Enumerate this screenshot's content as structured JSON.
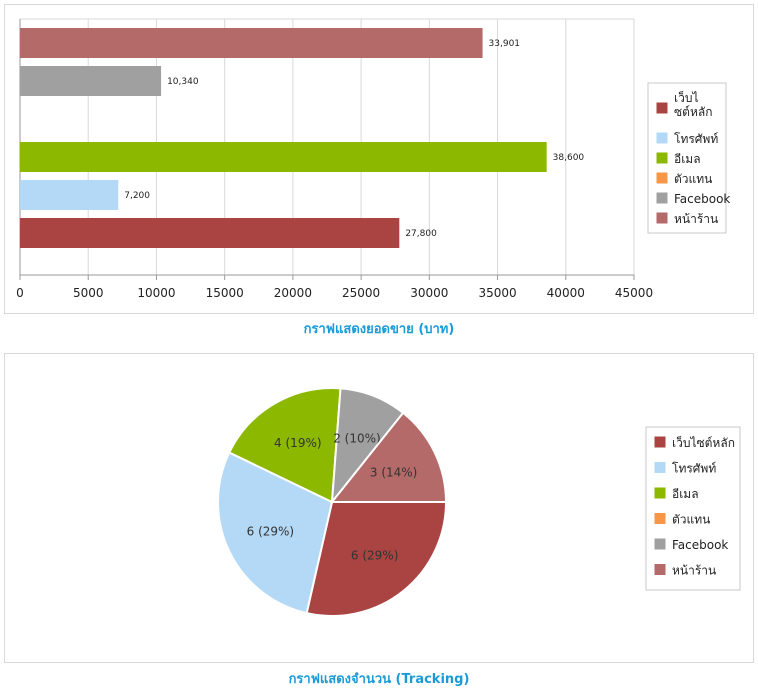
{
  "colors": {
    "legend_swatches": [
      "#a94442",
      "#b3d9f7",
      "#8cb800",
      "#f79646",
      "#a0a0a0",
      "#b56a6a"
    ]
  },
  "chart_data": [
    {
      "type": "bar",
      "orientation": "horizontal",
      "title": "กราฟแสดงยอดขาย (บาท)",
      "xlim": [
        0,
        45000
      ],
      "xticks": [
        0,
        5000,
        10000,
        15000,
        20000,
        25000,
        30000,
        35000,
        40000,
        45000
      ],
      "grid": true,
      "legend_position": "right",
      "legend": [
        "เว็บไซต์หลัก",
        "โทรศัพท์",
        "อีเมล",
        "ตัวแทน",
        "Facebook",
        "หน้าร้าน"
      ],
      "bars": [
        {
          "label": "33,901",
          "value": 33901,
          "color": "#b56a6a"
        },
        {
          "label": "10,340",
          "value": 10340,
          "color": "#a0a0a0"
        },
        {
          "label": "",
          "value": 0,
          "color": "#f79646"
        },
        {
          "label": "38,600",
          "value": 38600,
          "color": "#8cb800"
        },
        {
          "label": "7,200",
          "value": 7200,
          "color": "#b3d9f7"
        },
        {
          "label": "27,800",
          "value": 27800,
          "color": "#a94442"
        }
      ]
    },
    {
      "type": "pie",
      "title": "กราฟแสดงจำนวน (Tracking)",
      "legend_position": "right",
      "legend": [
        "เว็บไซต์หลัก",
        "โทรศัพท์",
        "อีเมล",
        "ตัวแทน",
        "Facebook",
        "หน้าร้าน"
      ],
      "slices": [
        {
          "value": 6,
          "label": "6 (29%)",
          "color": "#a94442"
        },
        {
          "value": 6,
          "label": "6 (29%)",
          "color": "#b3d9f7"
        },
        {
          "value": 4,
          "label": "4 (19%)",
          "color": "#8cb800"
        },
        {
          "value": 0,
          "label": "",
          "color": "#f79646"
        },
        {
          "value": 2,
          "label": "2 (10%)",
          "color": "#a0a0a0"
        },
        {
          "value": 3,
          "label": "3 (14%)",
          "color": "#b56a6a"
        }
      ]
    }
  ]
}
